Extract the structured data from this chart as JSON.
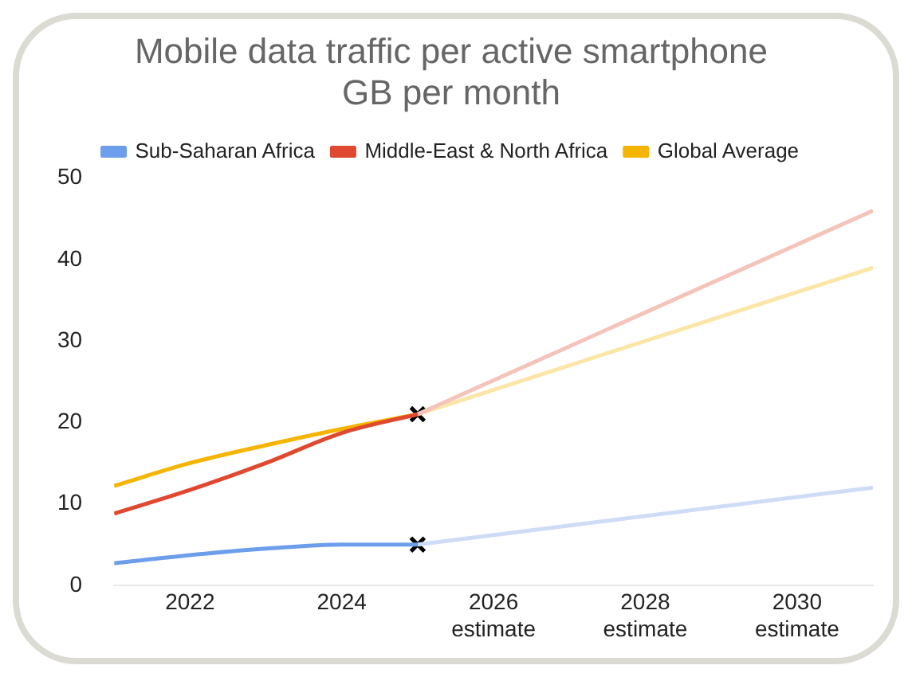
{
  "chart_data": {
    "type": "line",
    "title": "Mobile data traffic per active smartphone",
    "subtitle": "GB per month",
    "series": [
      {
        "name": "Sub-Saharan Africa",
        "color": "#6d9eeb",
        "x": [
          2021,
          2022,
          2023,
          2024,
          2025
        ],
        "values": [
          2.7,
          3.7,
          4.5,
          5,
          5
        ]
      },
      {
        "name": "Middle-East & North Africa",
        "color": "#e0482f",
        "x": [
          2021,
          2022,
          2023,
          2024,
          2025
        ],
        "values": [
          8.8,
          11.7,
          15,
          18.7,
          21
        ]
      },
      {
        "name": "Global Average",
        "color": "#f4b400",
        "x": [
          2021,
          2022,
          2023,
          2024,
          2025
        ],
        "values": [
          12.2,
          15,
          17.2,
          19.2,
          21
        ]
      },
      {
        "color": "#cfdcf6",
        "x": [
          2025,
          2031
        ],
        "values": [
          5,
          12
        ]
      },
      {
        "color": "#f4c4bb",
        "x": [
          2025,
          2031
        ],
        "values": [
          21,
          46
        ]
      },
      {
        "color": "#fbe6a8",
        "x": [
          2025,
          2031
        ],
        "values": [
          21,
          39
        ]
      },
      {
        "type": "scatter",
        "marker": "cross",
        "color": "#000000",
        "x": [
          2025,
          2025
        ],
        "values": [
          21,
          5
        ]
      }
    ],
    "xlim": [
      2021,
      2031
    ],
    "xticks": [
      2022,
      2024,
      {
        "value": 2026,
        "label": "2026\nestimate"
      },
      {
        "value": 2028,
        "label": "2028\nestimate"
      },
      {
        "value": 2030,
        "label": "2030\nestimate"
      }
    ],
    "ylim": [
      0,
      50
    ],
    "yticks": [
      0,
      10,
      20,
      30,
      40,
      50
    ],
    "grid": false,
    "legend": "top",
    "marker": "none",
    "line_style": "solid"
  }
}
